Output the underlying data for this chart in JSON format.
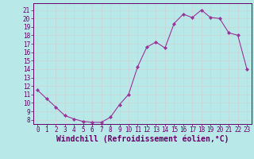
{
  "x": [
    0,
    1,
    2,
    3,
    4,
    5,
    6,
    7,
    8,
    9,
    10,
    11,
    12,
    13,
    14,
    15,
    16,
    17,
    18,
    19,
    20,
    21,
    22,
    23
  ],
  "y": [
    11.5,
    10.5,
    9.5,
    8.5,
    8.1,
    7.8,
    7.7,
    7.7,
    8.3,
    9.8,
    11.0,
    14.3,
    16.6,
    17.2,
    16.5,
    19.4,
    20.5,
    20.1,
    21.0,
    20.1,
    20.0,
    18.3,
    18.0,
    14.0
  ],
  "line_color": "#993399",
  "marker": "D",
  "marker_size": 2.2,
  "bg_color": "#b8e8e8",
  "grid_color": "#c8d8d8",
  "xlabel": "Windchill (Refroidissement éolien,°C)",
  "xlabel_fontsize": 7,
  "xlim": [
    -0.5,
    23.5
  ],
  "ylim": [
    7.5,
    21.8
  ],
  "yticks": [
    8,
    9,
    10,
    11,
    12,
    13,
    14,
    15,
    16,
    17,
    18,
    19,
    20,
    21
  ],
  "xticks": [
    0,
    1,
    2,
    3,
    4,
    5,
    6,
    7,
    8,
    9,
    10,
    11,
    12,
    13,
    14,
    15,
    16,
    17,
    18,
    19,
    20,
    21,
    22,
    23
  ],
  "tick_fontsize": 5.5,
  "axis_label_color": "#660066",
  "spine_color": "#660066"
}
